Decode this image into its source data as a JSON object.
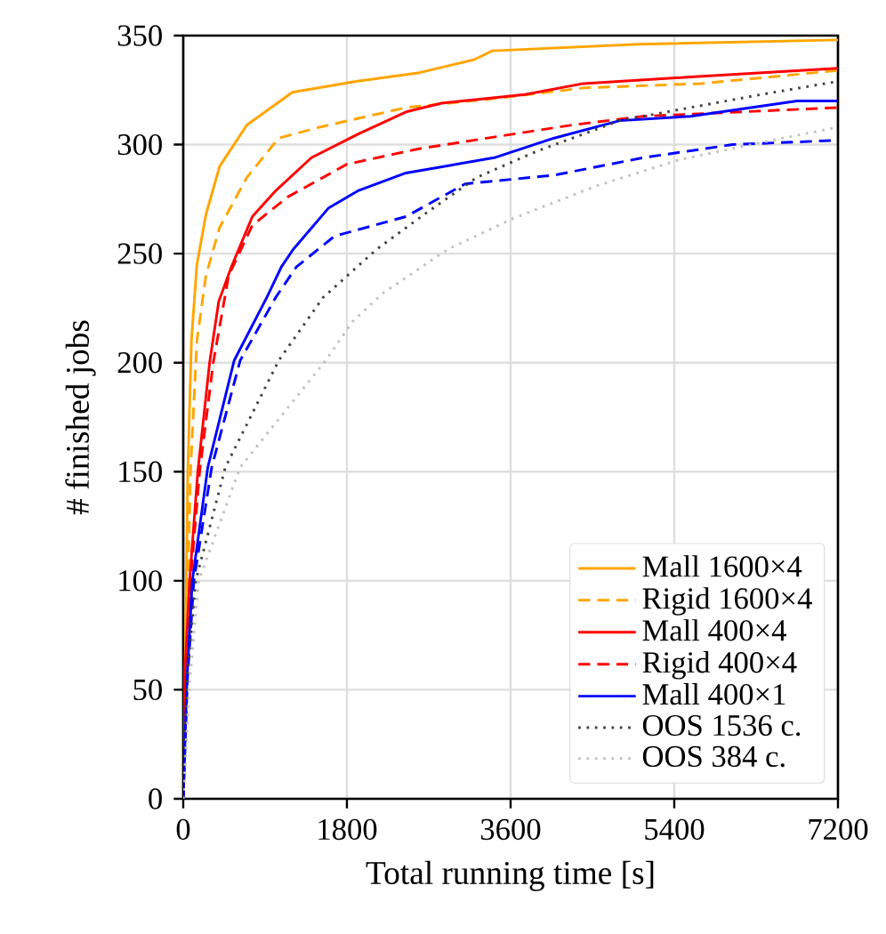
{
  "chart_data": {
    "type": "line",
    "xlabel": "Total running time [s]",
    "ylabel": "# finished jobs",
    "xlim": [
      0,
      7200
    ],
    "ylim": [
      0,
      350
    ],
    "xticks": [
      0,
      1800,
      3600,
      5400,
      7200
    ],
    "yticks": [
      0,
      50,
      100,
      150,
      200,
      250,
      300,
      350
    ],
    "grid": true,
    "legend": "bottom right",
    "series": [
      {
        "name": "Mall 1600×4",
        "color": "#ffa500",
        "line_style": "solid",
        "x": [
          0,
          20,
          50,
          90,
          150,
          250,
          400,
          700,
          1200,
          1900,
          2600,
          3200,
          3400,
          5000,
          7200
        ],
        "values": [
          0,
          60,
          150,
          210,
          245,
          268,
          290,
          309,
          324,
          329,
          333,
          339,
          343,
          346,
          348
        ]
      },
      {
        "name": "Rigid 1600×4",
        "color": "#ffa500",
        "line_style": "dashed",
        "x": [
          0,
          30,
          80,
          150,
          250,
          400,
          700,
          1050,
          1500,
          2450,
          3400,
          4400,
          5700,
          7200
        ],
        "values": [
          0,
          60,
          150,
          210,
          240,
          262,
          285,
          303,
          308,
          317,
          321,
          326,
          328,
          334
        ]
      },
      {
        "name": "Mall 400×4",
        "color": "#ff0000",
        "line_style": "solid",
        "x": [
          0,
          15,
          70,
          160,
          290,
          390,
          530,
          760,
          1020,
          1410,
          1930,
          2450,
          2840,
          3760,
          4400,
          5580,
          7200
        ],
        "values": [
          0,
          55,
          100,
          150,
          200,
          228,
          244,
          267,
          279,
          294,
          305,
          315,
          319,
          323,
          328,
          331,
          335
        ]
      },
      {
        "name": "Rigid 400×4",
        "color": "#ff0000",
        "line_style": "dashed",
        "x": [
          0,
          20,
          80,
          180,
          330,
          500,
          760,
          1150,
          1800,
          2580,
          3500,
          4280,
          5060,
          7200
        ],
        "values": [
          0,
          55,
          100,
          150,
          200,
          240,
          263,
          276,
          291,
          298,
          304,
          309,
          313,
          317
        ]
      },
      {
        "name": "Mall 400×1",
        "color": "#0000ff",
        "line_style": "solid",
        "x": [
          0,
          40,
          100,
          270,
          560,
          920,
          1080,
          1210,
          1600,
          1930,
          2450,
          3420,
          4080,
          4800,
          5580,
          6750,
          7200
        ],
        "values": [
          0,
          54,
          100,
          152,
          201,
          230,
          244,
          252,
          271,
          279,
          287,
          294,
          303,
          311,
          313,
          320,
          320
        ]
      },
      {
        "color": "#0000ff",
        "line_style": "dashed",
        "x": [
          0,
          45,
          117,
          313,
          626,
          1018,
          1246,
          1663,
          2450,
          3100,
          4080,
          5060,
          6040,
          7200
        ],
        "values": [
          0,
          54,
          100,
          152,
          201,
          230,
          244,
          258,
          267,
          282,
          286,
          294,
          300,
          302
        ]
      },
      {
        "name": "OOS 1536 c.",
        "color": "#404040",
        "line_style": "dotted",
        "x": [
          0,
          40,
          137,
          463,
          1050,
          1540,
          2127,
          2650,
          3230,
          3890,
          4800,
          5580,
          6360,
          7200
        ],
        "values": [
          0,
          54,
          100,
          152,
          201,
          230,
          252,
          268,
          285,
          297,
          311,
          317,
          323,
          329
        ]
      },
      {
        "name": "OOS 384 c.",
        "color": "#c0c0c0",
        "line_style": "dotted",
        "x": [
          0,
          72,
          170,
          626,
          1566,
          1865,
          2200,
          2910,
          3620,
          4540,
          5450,
          6360,
          7200
        ],
        "values": [
          0,
          54,
          100,
          152,
          201,
          219,
          232,
          252,
          266,
          281,
          293,
          301,
          308
        ]
      }
    ]
  }
}
